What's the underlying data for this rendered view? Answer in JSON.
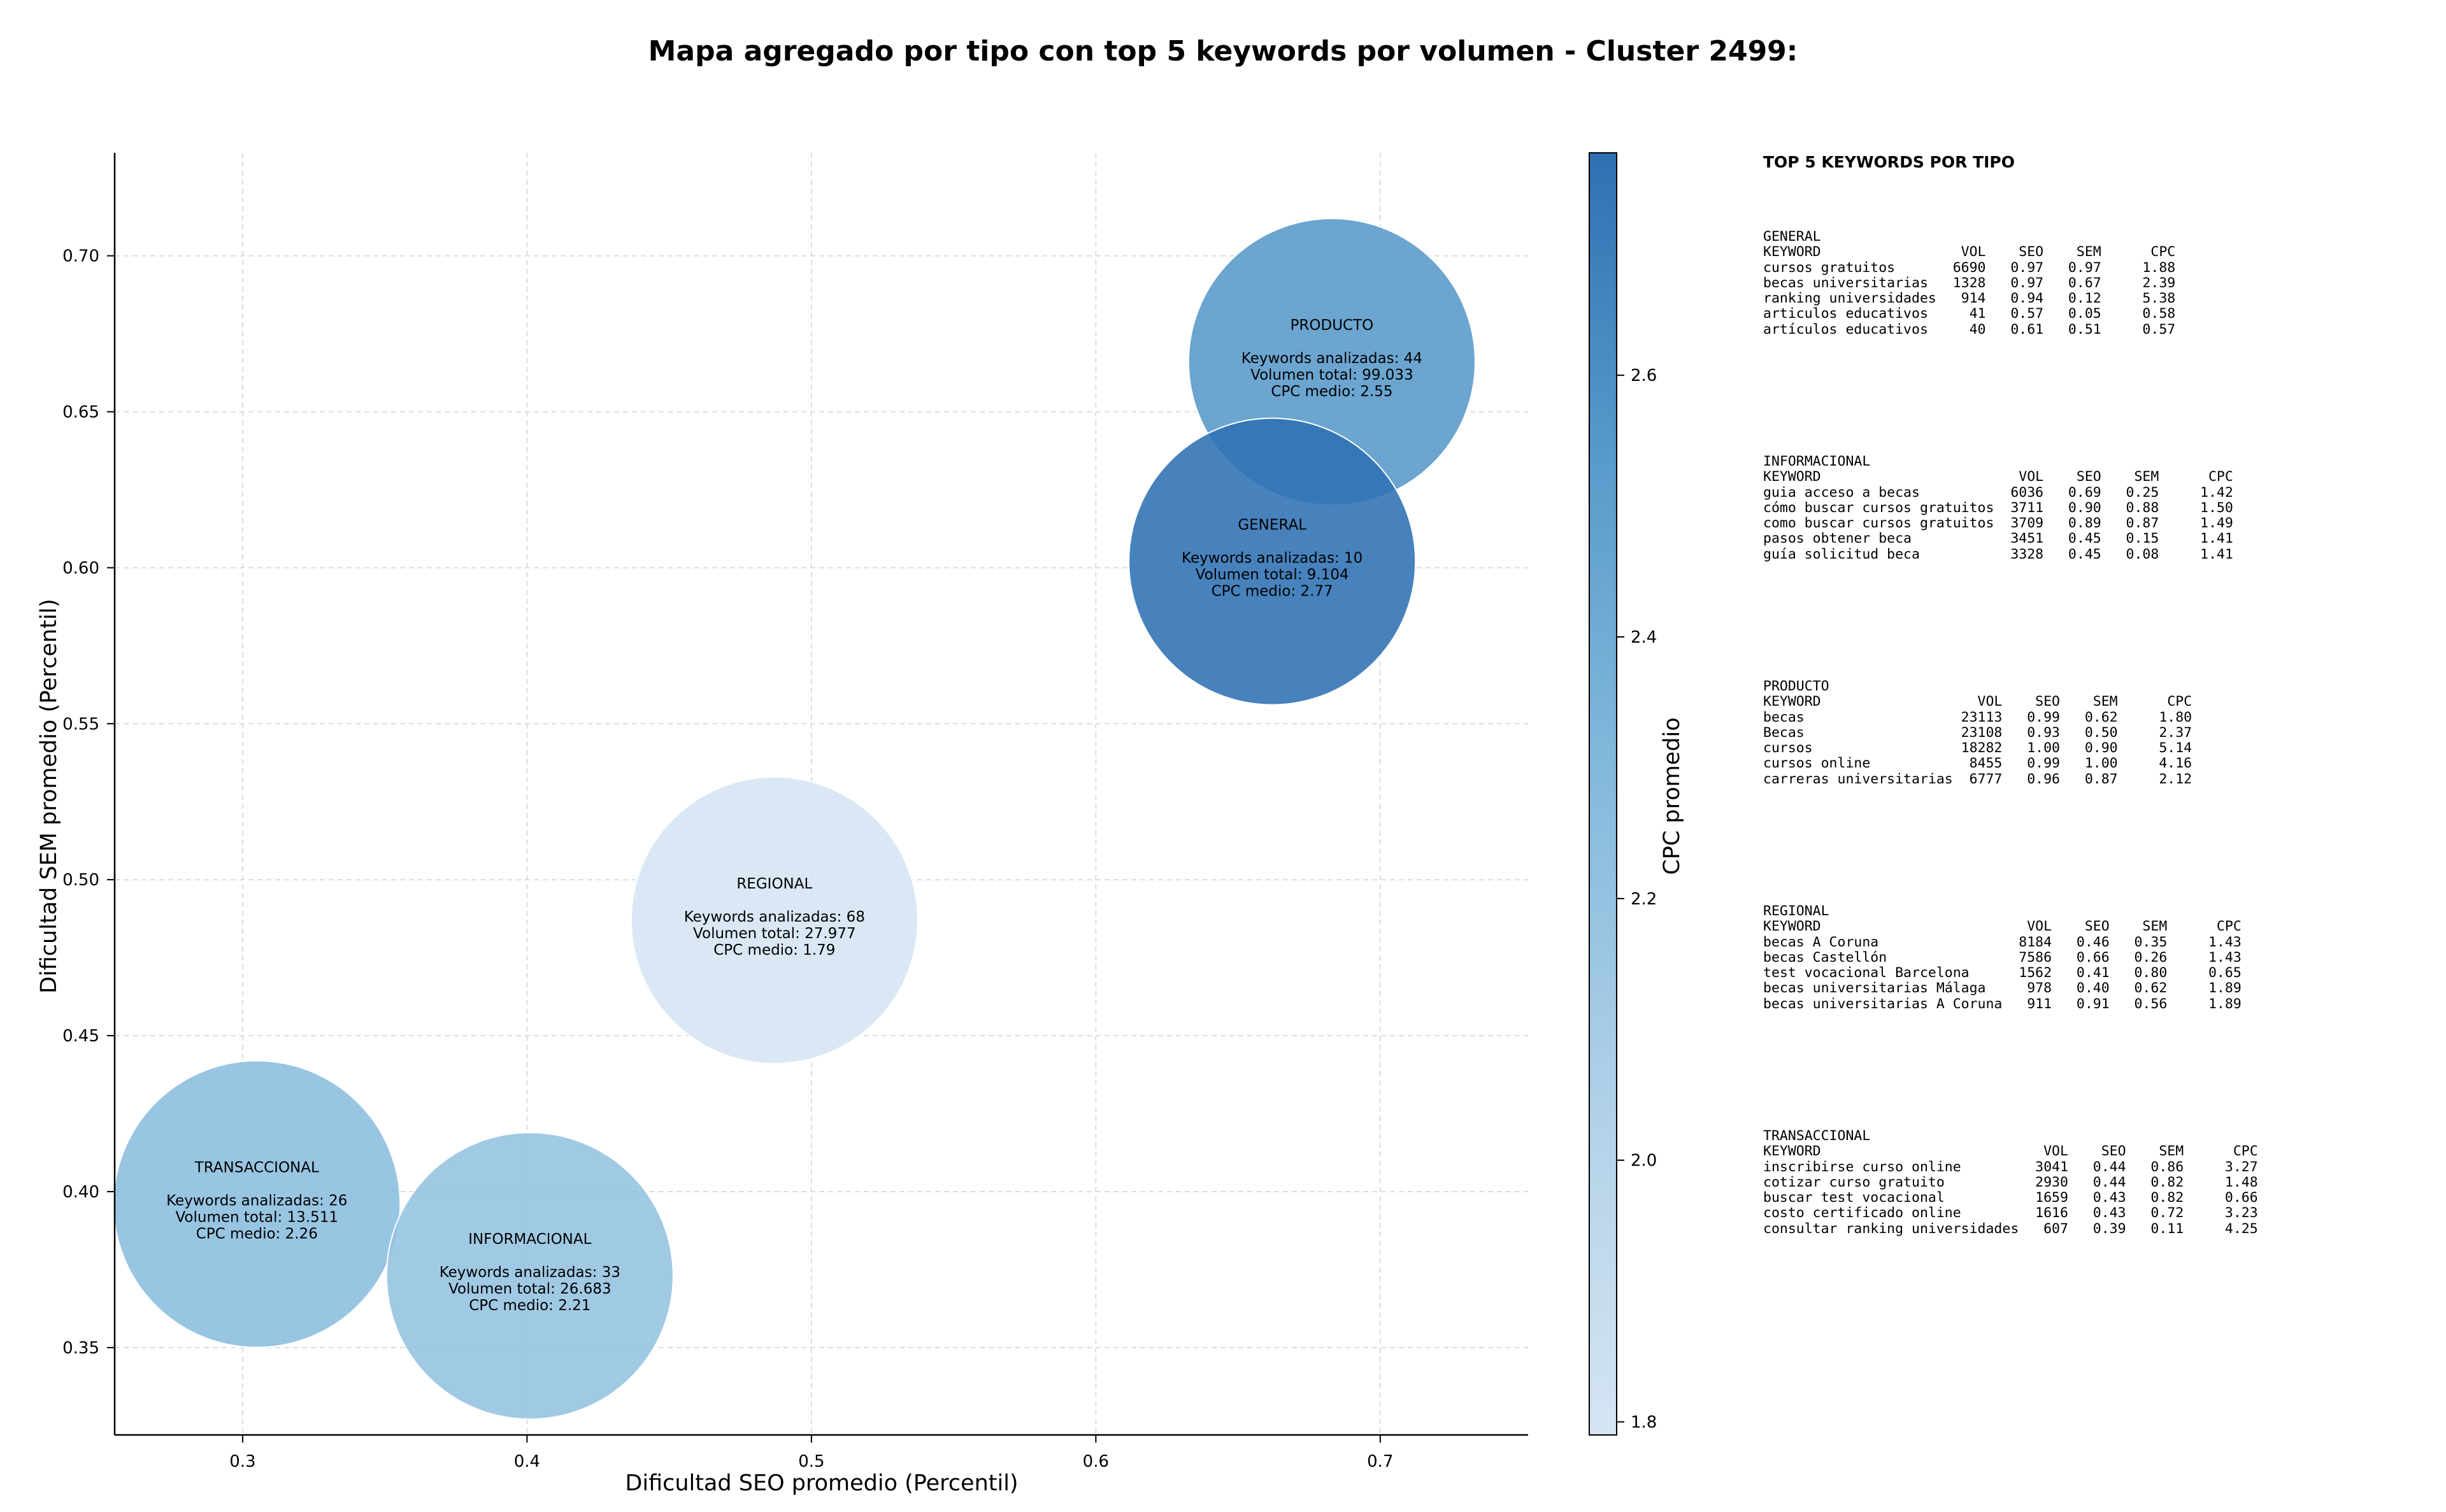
{
  "chart_data": {
    "type": "scatter",
    "title": "Mapa agregado por tipo con top 5 keywords por volumen - Cluster 2499:",
    "xlabel": "Dificultad SEO promedio (Percentil)",
    "ylabel": "Dificultad SEM promedio (Percentil)",
    "xlim": [
      0.255,
      0.752
    ],
    "ylim": [
      0.322,
      0.733
    ],
    "xticks": [
      "0.3",
      "0.4",
      "0.5",
      "0.6",
      "0.7"
    ],
    "yticks": [
      "0.35",
      "0.40",
      "0.45",
      "0.50",
      "0.55",
      "0.60",
      "0.65",
      "0.70"
    ],
    "grid": true,
    "colorbar": {
      "label": "CPC promedio",
      "range": [
        1.79,
        2.77
      ],
      "ticks": [
        "1.8",
        "2.0",
        "2.2",
        "2.4",
        "2.6"
      ],
      "colormap": "Blues"
    },
    "points": [
      {
        "name": "PRODUCTO",
        "x": 0.683,
        "y": 0.666,
        "cpc": 2.55,
        "lines": [
          "Keywords analizadas: 44",
          "Volumen total: 99.033",
          "CPC medio: 2.55"
        ]
      },
      {
        "name": "GENERAL",
        "x": 0.662,
        "y": 0.602,
        "cpc": 2.77,
        "lines": [
          "Keywords analizadas: 10",
          "Volumen total: 9.104",
          "CPC medio: 2.77"
        ]
      },
      {
        "name": "REGIONAL",
        "x": 0.487,
        "y": 0.487,
        "cpc": 1.79,
        "lines": [
          "Keywords analizadas: 68",
          "Volumen total: 27.977",
          "CPC medio: 1.79"
        ]
      },
      {
        "name": "TRANSACCIONAL",
        "x": 0.305,
        "y": 0.396,
        "cpc": 2.26,
        "lines": [
          "Keywords analizadas: 26",
          "Volumen total: 13.511",
          "CPC medio: 2.26"
        ]
      },
      {
        "name": "INFORMACIONAL",
        "x": 0.401,
        "y": 0.373,
        "cpc": 2.21,
        "lines": [
          "Keywords analizadas: 33",
          "Volumen total: 26.683",
          "CPC medio: 2.21"
        ]
      }
    ]
  },
  "top5": {
    "title": "TOP 5 KEYWORDS POR TIPO",
    "groups": [
      {
        "name": "GENERAL",
        "text": "GENERAL\nKEYWORD                 VOL    SEO    SEM      CPC\ncursos gratuitos       6690   0.97   0.97     1.88\nbecas universitarias   1328   0.97   0.67     2.39\nranking universidades   914   0.94   0.12     5.38\narticulos educativos     41   0.57   0.05     0.58\nartículos educativos     40   0.61   0.51     0.57"
      },
      {
        "name": "INFORMACIONAL",
        "text": "INFORMACIONAL\nKEYWORD                        VOL    SEO    SEM      CPC\nguia acceso a becas           6036   0.69   0.25     1.42\ncómo buscar cursos gratuitos  3711   0.90   0.88     1.50\ncomo buscar cursos gratuitos  3709   0.89   0.87     1.49\npasos obtener beca            3451   0.45   0.15     1.41\nguía solicitud beca           3328   0.45   0.08     1.41"
      },
      {
        "name": "PRODUCTO",
        "text": "PRODUCTO\nKEYWORD                   VOL    SEO    SEM      CPC\nbecas                   23113   0.99   0.62     1.80\nBecas                   23108   0.93   0.50     2.37\ncursos                  18282   1.00   0.90     5.14\ncursos online            8455   0.99   1.00     4.16\ncarreras universitarias  6777   0.96   0.87     2.12"
      },
      {
        "name": "REGIONAL",
        "text": "REGIONAL\nKEYWORD                         VOL    SEO    SEM      CPC\nbecas A Coruna                 8184   0.46   0.35     1.43\nbecas Castellón                7586   0.66   0.26     1.43\ntest vocacional Barcelona      1562   0.41   0.80     0.65\nbecas universitarias Málaga     978   0.40   0.62     1.89\nbecas universitarias A Coruna   911   0.91   0.56     1.89"
      },
      {
        "name": "TRANSACCIONAL",
        "text": "TRANSACCIONAL\nKEYWORD                           VOL    SEO    SEM      CPC\ninscribirse curso online         3041   0.44   0.86     3.27\ncotizar curso gratuito           2930   0.44   0.82     1.48\nbuscar test vocacional           1659   0.43   0.82     0.66\ncosto certificado online         1616   0.43   0.72     3.23\nconsultar ranking universidades   607   0.39   0.11     4.25"
      }
    ]
  }
}
